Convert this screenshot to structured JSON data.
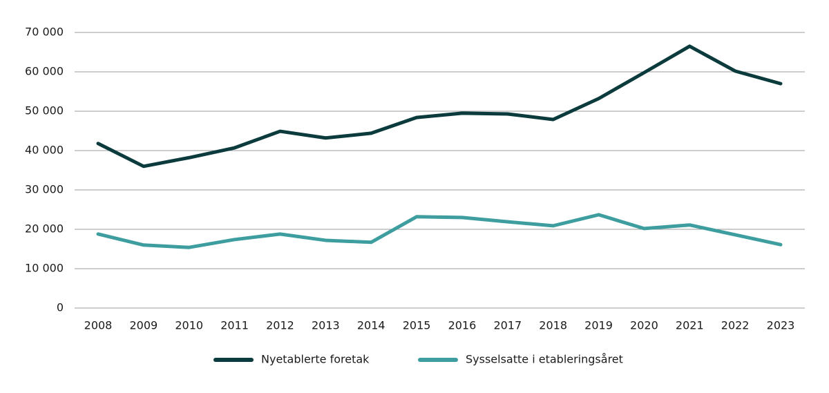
{
  "chart_data": {
    "type": "line",
    "categories": [
      "2008",
      "2009",
      "2010",
      "2011",
      "2012",
      "2013",
      "2014",
      "2015",
      "2016",
      "2017",
      "2018",
      "2019",
      "2020",
      "2021",
      "2022",
      "2023"
    ],
    "series": [
      {
        "name": "Nyetablerte foretak",
        "color": "#0b3b3c",
        "values": [
          41800,
          36000,
          38200,
          40700,
          44900,
          43200,
          44400,
          48400,
          49500,
          49300,
          47900,
          53200,
          59800,
          66500,
          60200,
          57000
        ]
      },
      {
        "name": "Sysselsatte i etableringsåret",
        "color": "#3e9e9f",
        "values": [
          18800,
          16000,
          15400,
          17400,
          18800,
          17200,
          16700,
          23200,
          23000,
          21900,
          20900,
          23700,
          20200,
          21100,
          18600,
          16100
        ]
      }
    ],
    "ylim": [
      0,
      70000
    ],
    "yticks": [
      0,
      {
        "value": 10000,
        "label": "10 000"
      },
      {
        "value": 20000,
        "label": "20 000"
      },
      {
        "value": 30000,
        "label": "30 000"
      },
      {
        "value": 40000,
        "label": "40 000"
      },
      {
        "value": 50000,
        "label": "50 000"
      },
      {
        "value": 60000,
        "label": "60 000"
      },
      {
        "value": 70000,
        "label": "70 000"
      }
    ],
    "grid": true,
    "legend": "bottom"
  }
}
